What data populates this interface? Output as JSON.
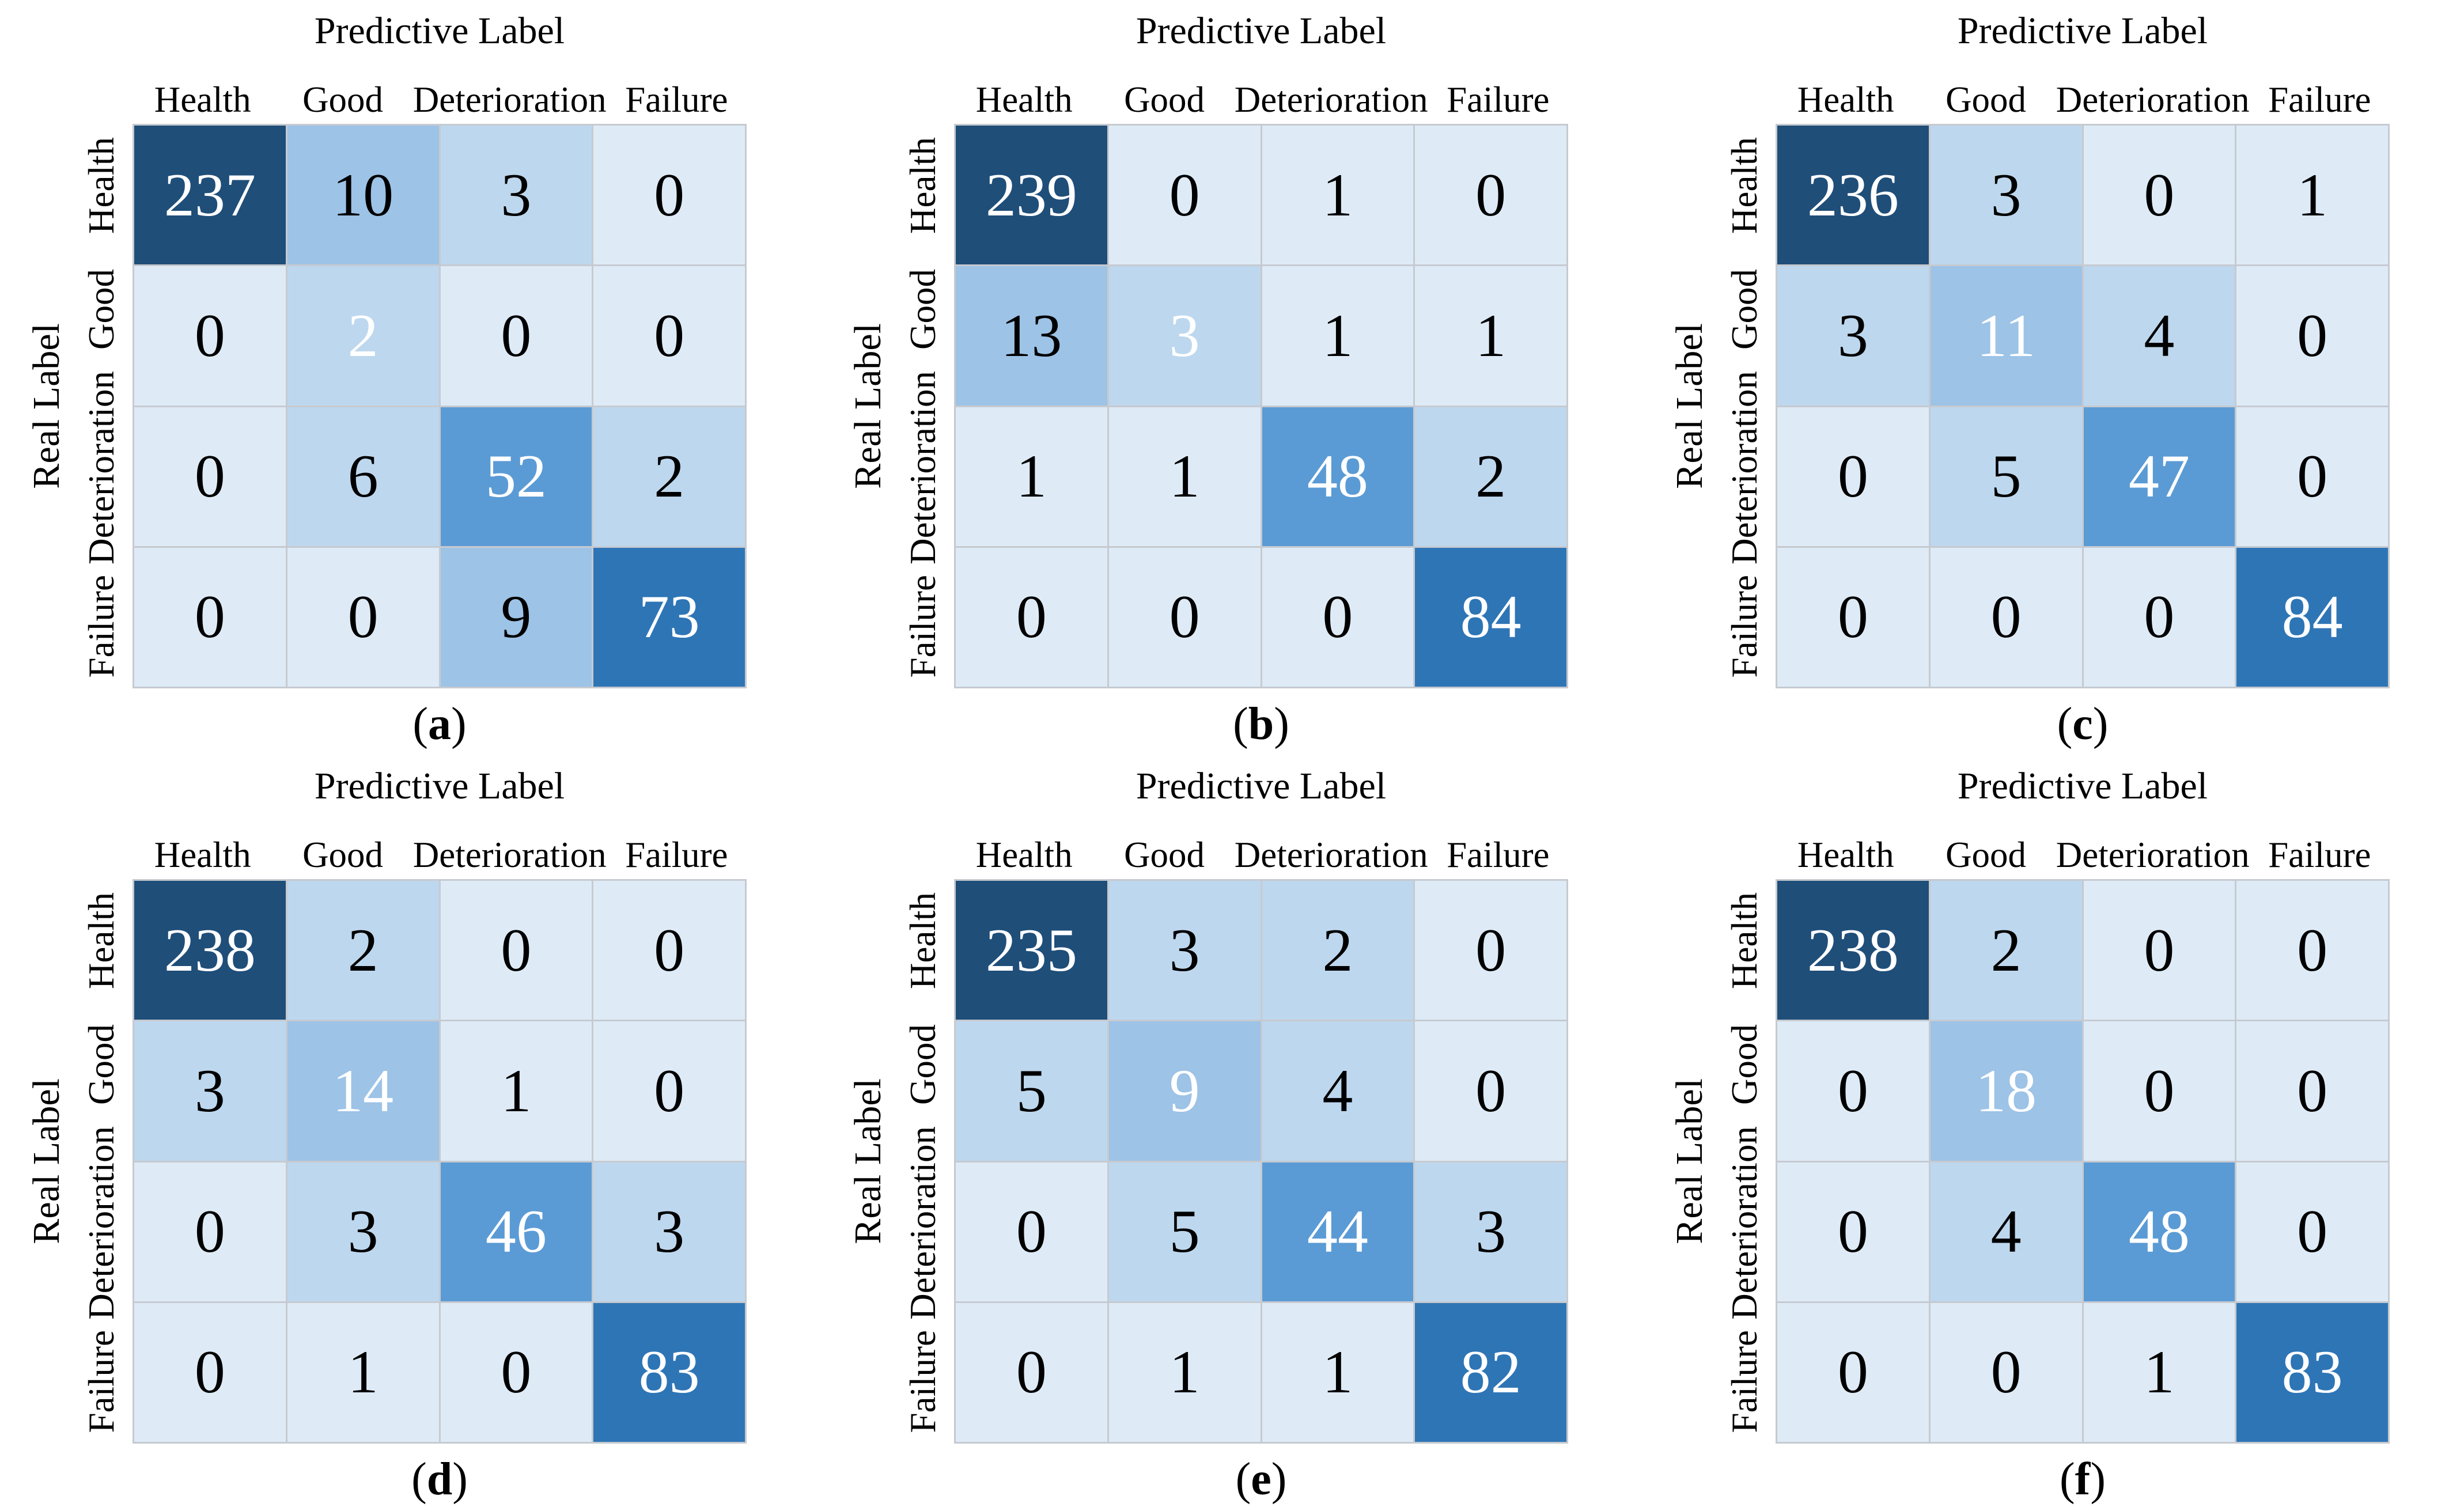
{
  "figure": {
    "caption_open": "(",
    "caption_close": ")",
    "colors": {
      "background": "#FFFFFF",
      "grid_line": "#C6CAD0",
      "diagonal_text": "#FFFFFF",
      "off_diagonal_text": "#000000",
      "scale_buckets": [
        {
          "max": 1,
          "color": "#DEEBF7"
        },
        {
          "max": 8,
          "color": "#BDD7EE"
        },
        {
          "max": 40,
          "color": "#9DC3E6"
        },
        {
          "max": 60,
          "color": "#5B9BD5"
        },
        {
          "max": 150,
          "color": "#2E75B6"
        },
        {
          "max": 99999,
          "color": "#1F4E79"
        }
      ]
    }
  },
  "chart_data": [
    {
      "type": "heatmap",
      "caption": "a",
      "xlabel": "Predictive Label",
      "ylabel": "Real Label",
      "x_categories": [
        "Health",
        "Good",
        "Deterioration",
        "Failure"
      ],
      "y_categories": [
        "Health",
        "Good",
        "Deterioration",
        "Failure"
      ],
      "matrix": [
        [
          237,
          10,
          3,
          0
        ],
        [
          0,
          2,
          0,
          0
        ],
        [
          0,
          6,
          52,
          2
        ],
        [
          0,
          0,
          9,
          73
        ]
      ]
    },
    {
      "type": "heatmap",
      "caption": "b",
      "xlabel": "Predictive Label",
      "ylabel": "Real Label",
      "x_categories": [
        "Health",
        "Good",
        "Deterioration",
        "Failure"
      ],
      "y_categories": [
        "Health",
        "Good",
        "Deterioration",
        "Failure"
      ],
      "matrix": [
        [
          239,
          0,
          1,
          0
        ],
        [
          13,
          3,
          1,
          1
        ],
        [
          1,
          1,
          48,
          2
        ],
        [
          0,
          0,
          0,
          84
        ]
      ]
    },
    {
      "type": "heatmap",
      "caption": "c",
      "xlabel": "Predictive Label",
      "ylabel": "Real Label",
      "x_categories": [
        "Health",
        "Good",
        "Deterioration",
        "Failure"
      ],
      "y_categories": [
        "Health",
        "Good",
        "Deterioration",
        "Failure"
      ],
      "matrix": [
        [
          236,
          3,
          0,
          1
        ],
        [
          3,
          11,
          4,
          0
        ],
        [
          0,
          5,
          47,
          0
        ],
        [
          0,
          0,
          0,
          84
        ]
      ]
    },
    {
      "type": "heatmap",
      "caption": "d",
      "xlabel": "Predictive Label",
      "ylabel": "Real Label",
      "x_categories": [
        "Health",
        "Good",
        "Deterioration",
        "Failure"
      ],
      "y_categories": [
        "Health",
        "Good",
        "Deterioration",
        "Failure"
      ],
      "matrix": [
        [
          238,
          2,
          0,
          0
        ],
        [
          3,
          14,
          1,
          0
        ],
        [
          0,
          3,
          46,
          3
        ],
        [
          0,
          1,
          0,
          83
        ]
      ]
    },
    {
      "type": "heatmap",
      "caption": "e",
      "xlabel": "Predictive Label",
      "ylabel": "Real Label",
      "x_categories": [
        "Health",
        "Good",
        "Deterioration",
        "Failure"
      ],
      "y_categories": [
        "Health",
        "Good",
        "Deterioration",
        "Failure"
      ],
      "matrix": [
        [
          235,
          3,
          2,
          0
        ],
        [
          5,
          9,
          4,
          0
        ],
        [
          0,
          5,
          44,
          3
        ],
        [
          0,
          1,
          1,
          82
        ]
      ]
    },
    {
      "type": "heatmap",
      "caption": "f",
      "xlabel": "Predictive Label",
      "ylabel": "Real Label",
      "x_categories": [
        "Health",
        "Good",
        "Deterioration",
        "Failure"
      ],
      "y_categories": [
        "Health",
        "Good",
        "Deterioration",
        "Failure"
      ],
      "matrix": [
        [
          238,
          2,
          0,
          0
        ],
        [
          0,
          18,
          0,
          0
        ],
        [
          0,
          4,
          48,
          0
        ],
        [
          0,
          0,
          1,
          83
        ]
      ]
    }
  ]
}
